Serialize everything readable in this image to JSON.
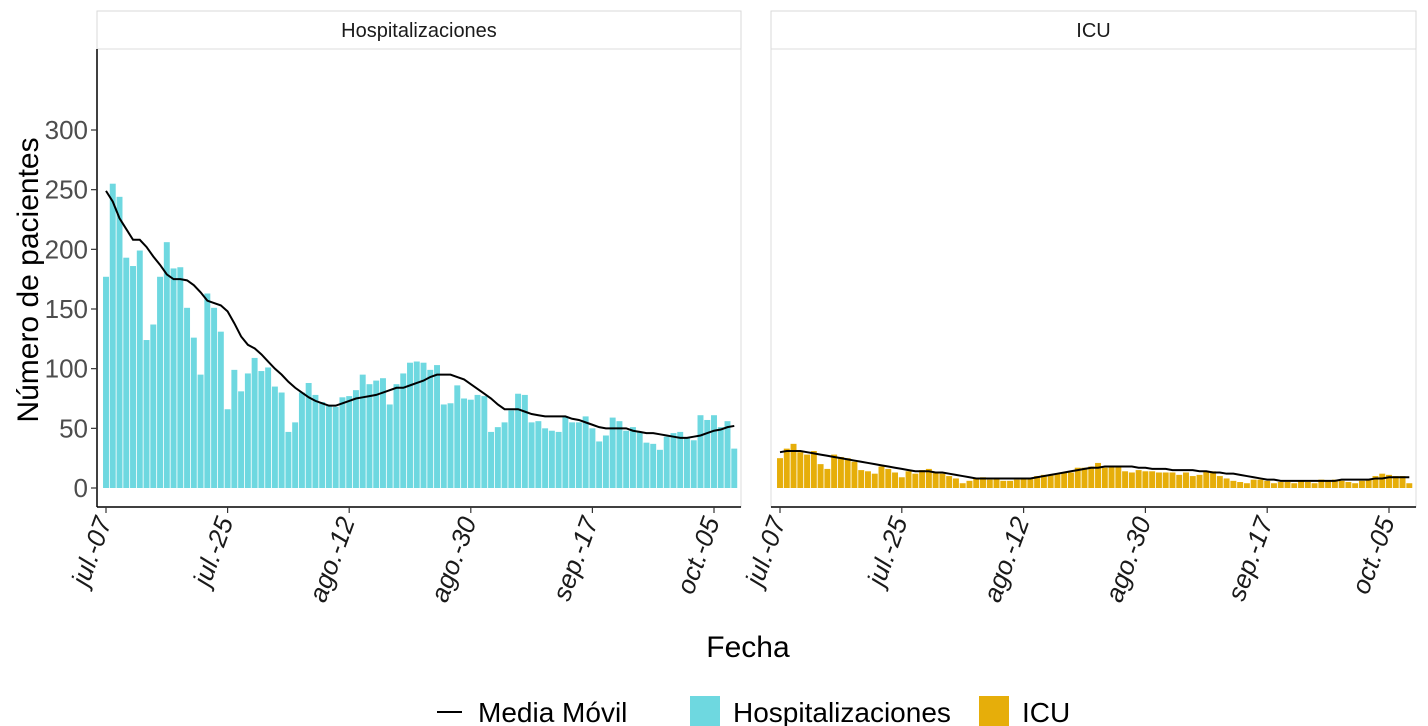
{
  "chart_data": {
    "type": "bar",
    "xlabel": "Fecha",
    "ylabel": "Número de pacientes",
    "ylim": [
      0,
      380
    ],
    "y_ticks": [
      0,
      50,
      100,
      150,
      200,
      250,
      300
    ],
    "x_tick_labels": [
      "jul.-07",
      "jul.-25",
      "ago.-12",
      "ago.-30",
      "sep.-17",
      "oct.-05"
    ],
    "x_tick_day_index": [
      0,
      18,
      36,
      54,
      72,
      90
    ],
    "grid": false,
    "legend_position": "bottom",
    "legend": [
      "Media Móvil",
      "Hospitalizaciones",
      "ICU"
    ],
    "colors": {
      "hospitalizaciones": "#6ED8E0",
      "icu": "#E6AE0A",
      "line": "#000000"
    },
    "panels": [
      {
        "title": "Hospitalizaciones",
        "bar_series": "Hospitalizaciones",
        "values": [
          177,
          255,
          244,
          193,
          186,
          199,
          124,
          137,
          177,
          206,
          184,
          185,
          151,
          126,
          95,
          163,
          151,
          131,
          66,
          99,
          81,
          96,
          109,
          98,
          101,
          85,
          80,
          47,
          55,
          80,
          88,
          78,
          72,
          69,
          68,
          76,
          77,
          82,
          95,
          87,
          90,
          92,
          70,
          87,
          96,
          105,
          106,
          105,
          99,
          103,
          70,
          71,
          86,
          75,
          74,
          78,
          77,
          47,
          51,
          55,
          65,
          79,
          78,
          55,
          56,
          50,
          48,
          47,
          60,
          55,
          55,
          60,
          50,
          39,
          44,
          59,
          56,
          48,
          51,
          47,
          38,
          37,
          32,
          43,
          46,
          47,
          42,
          40,
          61,
          57,
          61,
          51,
          56,
          33
        ],
        "moving_average": [
          249,
          240,
          226,
          217,
          208,
          208,
          202,
          194,
          187,
          179,
          175,
          175,
          174,
          170,
          164,
          157,
          155,
          153,
          148,
          138,
          127,
          120,
          117,
          112,
          106,
          100,
          95,
          89,
          84,
          80,
          76,
          73,
          71,
          69,
          69,
          71,
          73,
          75,
          76,
          77,
          78,
          80,
          82,
          84,
          84,
          86,
          88,
          90,
          93,
          95,
          95,
          95,
          93,
          91,
          87,
          83,
          79,
          75,
          70,
          66,
          66,
          66,
          64,
          62,
          61,
          60,
          60,
          60,
          60,
          58,
          57,
          55,
          53,
          51,
          50,
          50,
          50,
          50,
          48,
          47,
          46,
          46,
          45,
          44,
          43,
          42,
          42,
          43,
          44,
          46,
          48,
          49,
          51,
          52
        ]
      },
      {
        "title": "ICU",
        "bar_series": "ICU",
        "values": [
          25,
          33,
          37,
          30,
          28,
          31,
          20,
          16,
          28,
          26,
          25,
          22,
          15,
          14,
          12,
          18,
          16,
          13,
          9,
          14,
          12,
          15,
          16,
          13,
          12,
          10,
          8,
          4,
          6,
          8,
          9,
          7,
          8,
          6,
          6,
          7,
          8,
          8,
          10,
          11,
          11,
          12,
          13,
          13,
          17,
          17,
          18,
          21,
          17,
          18,
          18,
          14,
          13,
          15,
          14,
          14,
          13,
          13,
          13,
          11,
          13,
          10,
          11,
          14,
          14,
          10,
          8,
          6,
          5,
          4,
          7,
          7,
          6,
          4,
          5,
          5,
          4,
          6,
          5,
          4,
          7,
          6,
          7,
          6,
          5,
          4,
          6,
          7,
          10,
          12,
          11,
          10,
          10,
          4
        ],
        "moving_average": [
          30,
          31,
          31,
          31,
          30,
          29,
          28,
          27,
          26,
          25,
          24,
          23,
          22,
          21,
          20,
          19,
          18,
          17,
          16,
          15,
          14,
          14,
          14,
          13,
          13,
          12,
          11,
          10,
          9,
          8,
          8,
          8,
          8,
          8,
          8,
          8,
          8,
          8,
          9,
          10,
          11,
          12,
          13,
          14,
          15,
          16,
          17,
          17,
          18,
          18,
          18,
          18,
          18,
          17,
          17,
          16,
          16,
          16,
          15,
          15,
          15,
          15,
          14,
          14,
          13,
          13,
          12,
          12,
          11,
          10,
          9,
          8,
          7,
          7,
          6,
          6,
          6,
          6,
          6,
          6,
          6,
          6,
          6,
          7,
          7,
          7,
          7,
          7,
          8,
          8,
          9,
          9,
          9,
          9
        ]
      }
    ]
  }
}
